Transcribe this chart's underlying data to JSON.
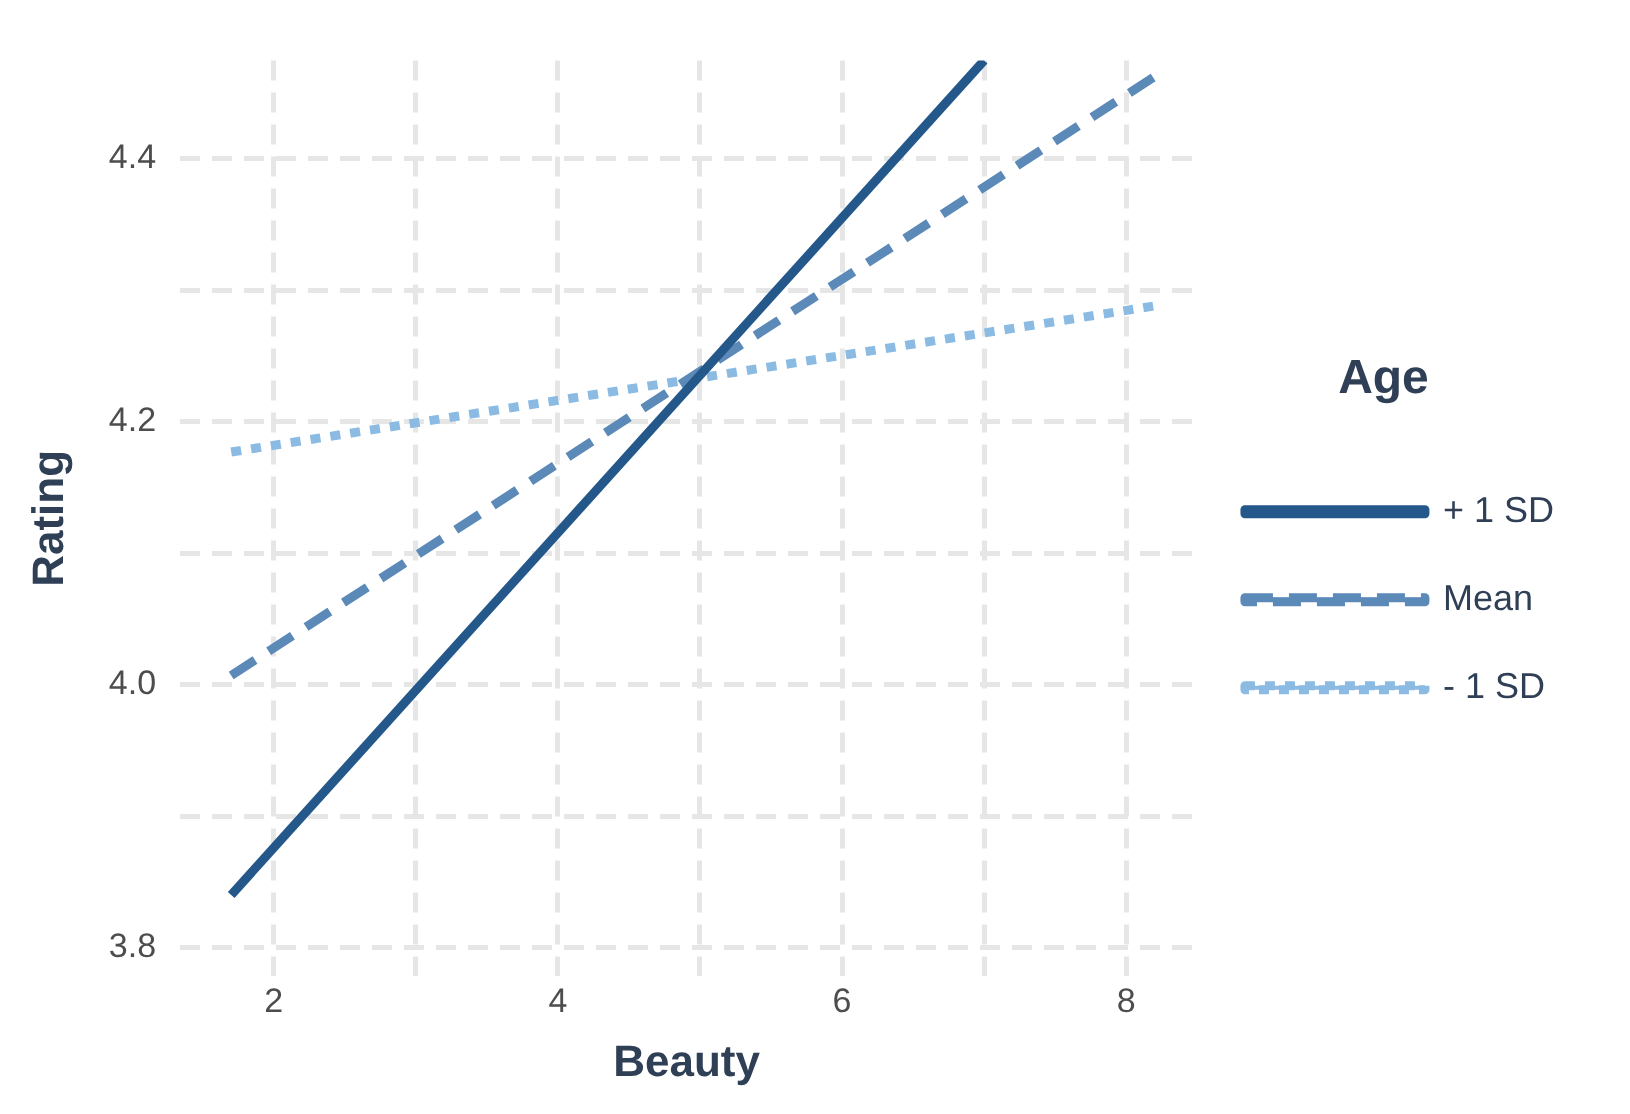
{
  "chart_data": {
    "type": "line",
    "xlabel": "Beauty",
    "ylabel": "Rating",
    "legend_title": "Age",
    "xlim": [
      1.34,
      8.47
    ],
    "ylim": [
      3.778,
      4.475
    ],
    "xticks": [
      2,
      {
        "value": 3,
        "label": null
      },
      4,
      {
        "value": 5,
        "label": null
      },
      6,
      {
        "value": 7,
        "label": null
      },
      8
    ],
    "yticks": [
      3.8,
      {
        "value": 3.9,
        "label": null
      },
      {
        "value": 4,
        "label": "4.0"
      },
      {
        "value": 4.1,
        "label": null
      },
      4.2,
      {
        "value": 4.3,
        "label": null
      },
      4.4
    ],
    "grid": true,
    "legend": "right",
    "series": [
      {
        "name": "+ 1 SD",
        "color": "#24578a",
        "line_style": "solid",
        "x": [
          1.7,
          7.0
        ],
        "values": [
          3.84,
          4.475
        ]
      },
      {
        "name": "Mean",
        "color": "#5b89b8",
        "line_style": "dashed",
        "x": [
          1.7,
          8.19
        ],
        "values": [
          4.007,
          4.462
        ]
      },
      {
        "name": "- 1 SD",
        "color": "#8bbbe3",
        "line_style": "dotted",
        "x": [
          1.7,
          8.19
        ],
        "values": [
          4.177,
          4.288
        ]
      }
    ]
  }
}
